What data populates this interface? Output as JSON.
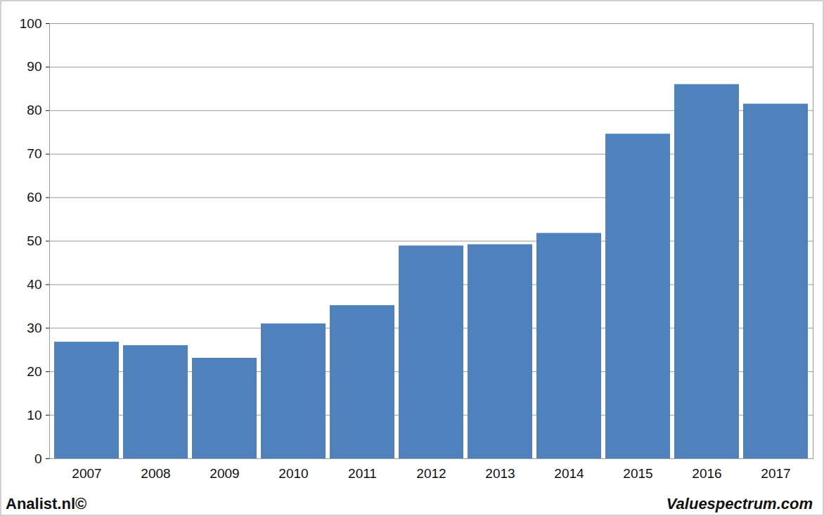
{
  "chart_data": {
    "type": "bar",
    "categories": [
      "2007",
      "2008",
      "2009",
      "2010",
      "2011",
      "2012",
      "2013",
      "2014",
      "2015",
      "2016",
      "2017"
    ],
    "values": [
      26.8,
      26.0,
      23.1,
      31.0,
      35.2,
      48.9,
      49.2,
      51.8,
      74.6,
      86.0,
      81.5
    ],
    "color": "#4f81bd",
    "ylim": [
      0,
      100
    ],
    "yticks": [
      0,
      10,
      20,
      30,
      40,
      50,
      60,
      70,
      80,
      90,
      100
    ],
    "grid": true,
    "annotations": [
      "Analist.nl©",
      "Valuespectrum.com"
    ]
  }
}
